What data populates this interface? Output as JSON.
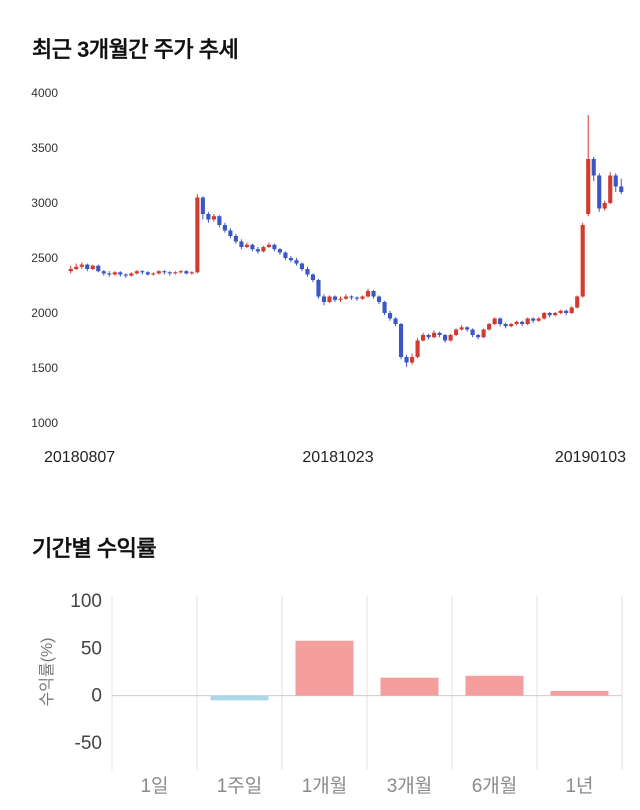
{
  "page": {
    "background": "#ffffff"
  },
  "chart_data": [
    {
      "type": "candlestick",
      "title": "최근 3개월간 주가 추세",
      "ylim": [
        1000,
        4000
      ],
      "yticks": [
        1000,
        1500,
        2000,
        2500,
        3000,
        3500,
        4000
      ],
      "x_tick_labels": [
        "20180807",
        "20181023",
        "20190103"
      ],
      "up_color": "#d13b31",
      "down_color": "#3a57c5",
      "grid": false,
      "candles": [
        [
          2380,
          2430,
          2360,
          2400
        ],
        [
          2400,
          2450,
          2390,
          2420
        ],
        [
          2420,
          2460,
          2400,
          2440
        ],
        [
          2440,
          2450,
          2380,
          2400
        ],
        [
          2400,
          2440,
          2390,
          2430
        ],
        [
          2430,
          2440,
          2370,
          2380
        ],
        [
          2380,
          2390,
          2340,
          2360
        ],
        [
          2360,
          2380,
          2330,
          2350
        ],
        [
          2350,
          2380,
          2340,
          2370
        ],
        [
          2370,
          2380,
          2330,
          2350
        ],
        [
          2350,
          2360,
          2320,
          2340
        ],
        [
          2340,
          2370,
          2330,
          2360
        ],
        [
          2360,
          2390,
          2350,
          2380
        ],
        [
          2380,
          2390,
          2350,
          2370
        ],
        [
          2370,
          2380,
          2340,
          2350
        ],
        [
          2350,
          2370,
          2340,
          2360
        ],
        [
          2360,
          2390,
          2350,
          2380
        ],
        [
          2380,
          2390,
          2350,
          2370
        ],
        [
          2370,
          2380,
          2340,
          2360
        ],
        [
          2360,
          2380,
          2350,
          2370
        ],
        [
          2370,
          2390,
          2360,
          2380
        ],
        [
          2380,
          2390,
          2350,
          2360
        ],
        [
          2360,
          2380,
          2350,
          2370
        ],
        [
          2370,
          3080,
          2360,
          3050
        ],
        [
          3050,
          3060,
          2850,
          2900
        ],
        [
          2900,
          2920,
          2820,
          2850
        ],
        [
          2850,
          2900,
          2830,
          2880
        ],
        [
          2880,
          2890,
          2780,
          2800
        ],
        [
          2800,
          2820,
          2730,
          2750
        ],
        [
          2750,
          2770,
          2680,
          2700
        ],
        [
          2700,
          2720,
          2630,
          2650
        ],
        [
          2650,
          2670,
          2580,
          2600
        ],
        [
          2600,
          2640,
          2590,
          2620
        ],
        [
          2620,
          2630,
          2560,
          2580
        ],
        [
          2580,
          2600,
          2540,
          2560
        ],
        [
          2560,
          2610,
          2550,
          2600
        ],
        [
          2600,
          2640,
          2590,
          2620
        ],
        [
          2620,
          2630,
          2560,
          2580
        ],
        [
          2580,
          2590,
          2530,
          2550
        ],
        [
          2550,
          2560,
          2480,
          2500
        ],
        [
          2500,
          2520,
          2460,
          2480
        ],
        [
          2480,
          2500,
          2430,
          2450
        ],
        [
          2450,
          2460,
          2380,
          2400
        ],
        [
          2400,
          2420,
          2330,
          2350
        ],
        [
          2350,
          2360,
          2280,
          2300
        ],
        [
          2300,
          2310,
          2130,
          2150
        ],
        [
          2150,
          2170,
          2070,
          2100
        ],
        [
          2100,
          2160,
          2090,
          2150
        ],
        [
          2150,
          2160,
          2100,
          2120
        ],
        [
          2120,
          2150,
          2100,
          2130
        ],
        [
          2130,
          2170,
          2120,
          2150
        ],
        [
          2150,
          2160,
          2120,
          2140
        ],
        [
          2140,
          2150,
          2110,
          2130
        ],
        [
          2130,
          2160,
          2120,
          2150
        ],
        [
          2150,
          2220,
          2140,
          2200
        ],
        [
          2200,
          2210,
          2130,
          2150
        ],
        [
          2150,
          2160,
          2080,
          2100
        ],
        [
          2100,
          2110,
          1980,
          2000
        ],
        [
          2000,
          2020,
          1930,
          1950
        ],
        [
          1950,
          1960,
          1880,
          1900
        ],
        [
          1900,
          1910,
          1580,
          1600
        ],
        [
          1600,
          1620,
          1510,
          1550
        ],
        [
          1550,
          1630,
          1530,
          1600
        ],
        [
          1600,
          1770,
          1590,
          1750
        ],
        [
          1750,
          1820,
          1740,
          1800
        ],
        [
          1800,
          1810,
          1760,
          1780
        ],
        [
          1780,
          1840,
          1770,
          1820
        ],
        [
          1820,
          1830,
          1780,
          1800
        ],
        [
          1800,
          1810,
          1730,
          1750
        ],
        [
          1750,
          1810,
          1740,
          1800
        ],
        [
          1800,
          1860,
          1790,
          1850
        ],
        [
          1850,
          1890,
          1840,
          1870
        ],
        [
          1870,
          1880,
          1830,
          1850
        ],
        [
          1850,
          1860,
          1780,
          1800
        ],
        [
          1800,
          1810,
          1760,
          1780
        ],
        [
          1780,
          1860,
          1770,
          1850
        ],
        [
          1850,
          1910,
          1840,
          1900
        ],
        [
          1900,
          1960,
          1890,
          1950
        ],
        [
          1950,
          1960,
          1880,
          1900
        ],
        [
          1900,
          1910,
          1860,
          1880
        ],
        [
          1880,
          1910,
          1870,
          1900
        ],
        [
          1900,
          1930,
          1890,
          1920
        ],
        [
          1920,
          1930,
          1880,
          1900
        ],
        [
          1900,
          1960,
          1890,
          1950
        ],
        [
          1950,
          1960,
          1910,
          1930
        ],
        [
          1930,
          1960,
          1920,
          1950
        ],
        [
          1950,
          2010,
          1940,
          2000
        ],
        [
          2000,
          2010,
          1960,
          1980
        ],
        [
          1980,
          2010,
          1970,
          2000
        ],
        [
          2000,
          2030,
          1990,
          2020
        ],
        [
          2020,
          2030,
          1980,
          2000
        ],
        [
          2000,
          2060,
          1990,
          2050
        ],
        [
          2050,
          2160,
          2040,
          2150
        ],
        [
          2150,
          2820,
          2140,
          2800
        ],
        [
          2900,
          3800,
          2880,
          3400
        ],
        [
          3400,
          3420,
          3200,
          3250
        ],
        [
          3250,
          3270,
          2920,
          2950
        ],
        [
          2950,
          3020,
          2930,
          3000
        ],
        [
          3000,
          3280,
          2990,
          3250
        ],
        [
          3250,
          3270,
          3100,
          3150
        ],
        [
          3150,
          3220,
          3080,
          3100
        ]
      ]
    },
    {
      "type": "bar",
      "title": "기간별 수익률",
      "ylabel": "수익률(%)",
      "categories": [
        "1일",
        "1주일",
        "1개월",
        "3개월",
        "6개월",
        "1년"
      ],
      "values": [
        0,
        -5,
        58,
        19,
        21,
        5
      ],
      "ylim": [
        -50,
        100
      ],
      "yticks": [
        100,
        50,
        0,
        -50
      ],
      "positive_color": "#f59e9e",
      "negative_color": "#a8d8ea",
      "grid": true,
      "grid_color": "#e0e0e0",
      "baseline_color": "#cccccc",
      "legend": "none"
    }
  ]
}
